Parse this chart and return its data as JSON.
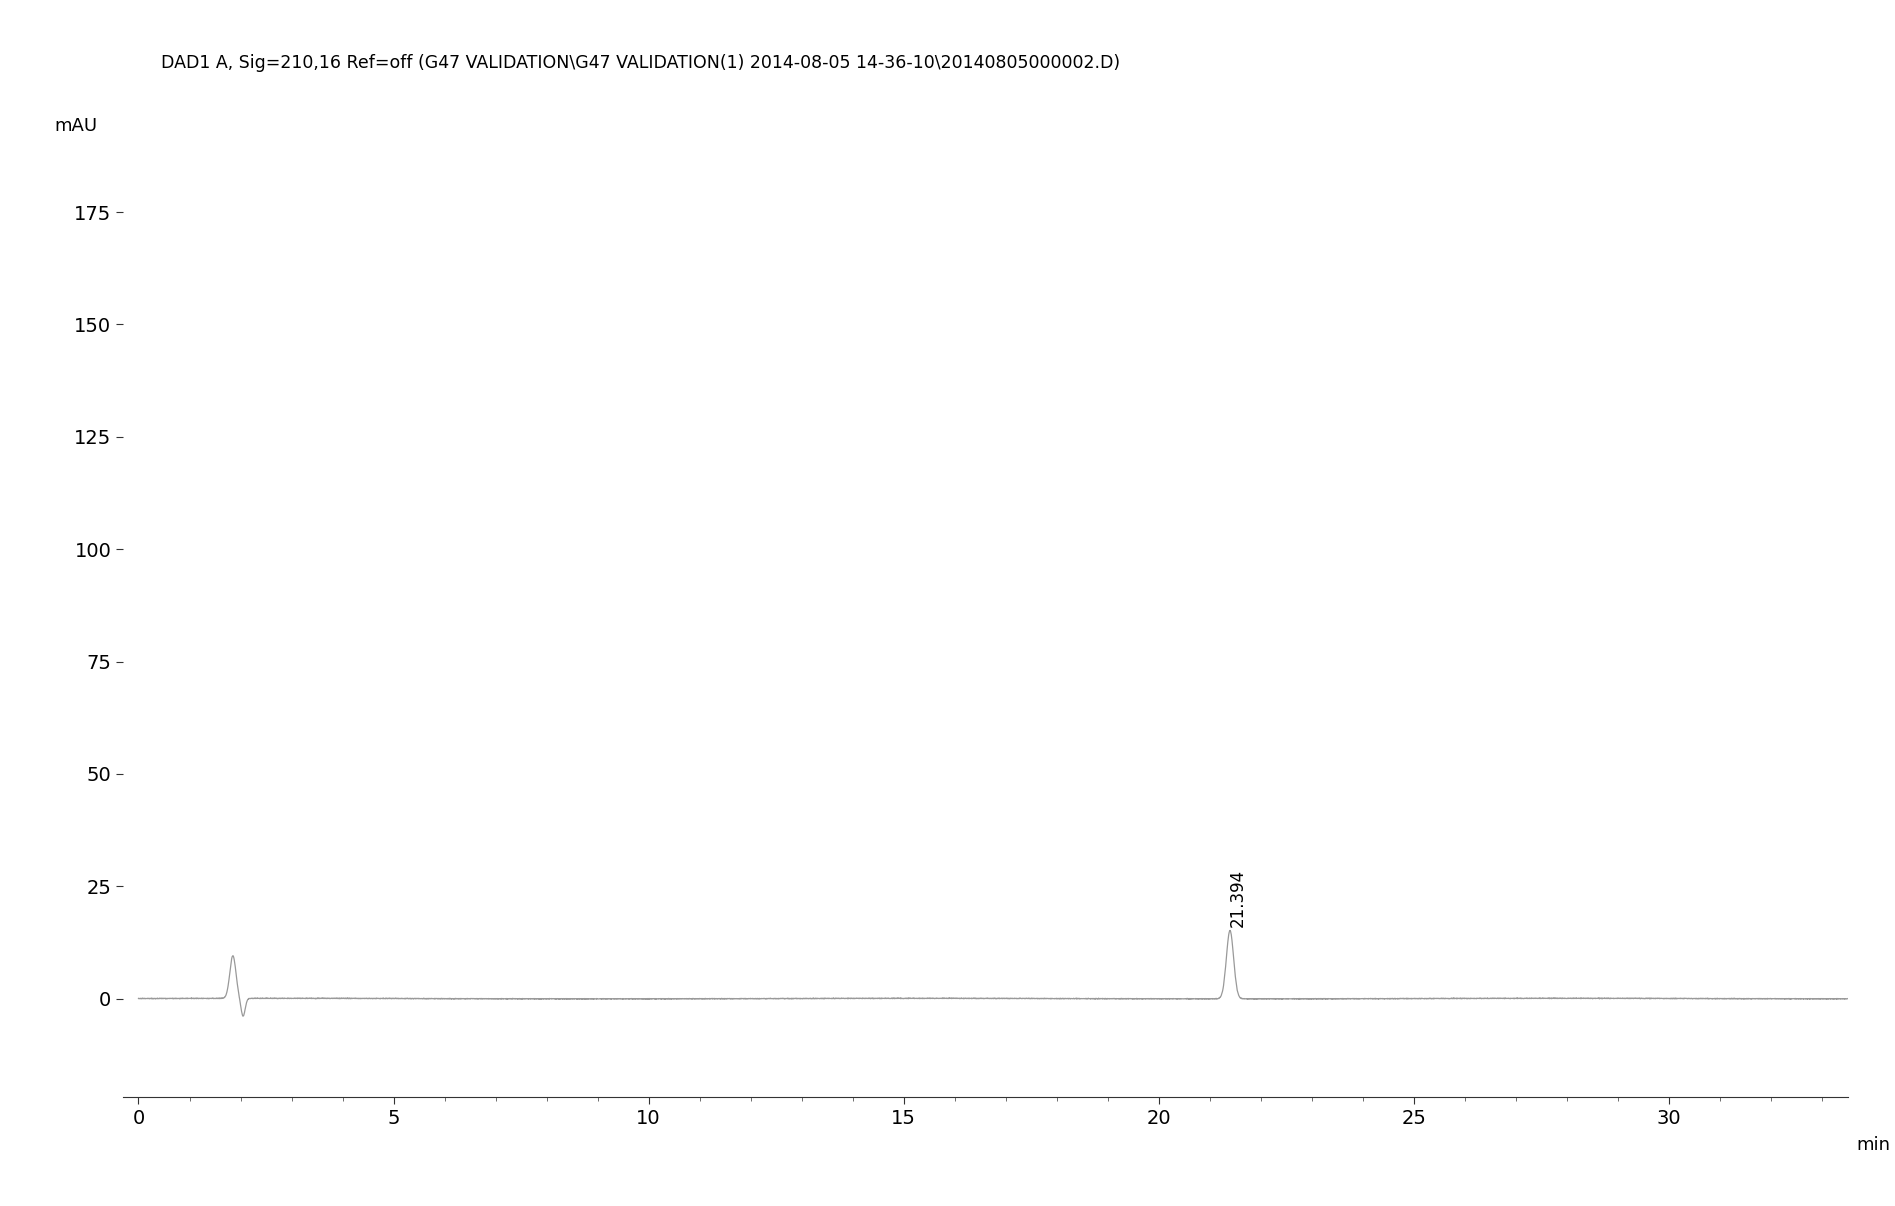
{
  "header_line1": "DAD1 A, Sig=210,16 Ref=off (G47 VALIDATION\\G47 VALIDATION(1) 2014-08-05 14-36-10\\20140805000002.D)",
  "ylabel": "mAU",
  "xlabel": "min",
  "xlim": [
    -0.3,
    33.5
  ],
  "ylim": [
    -22,
    190
  ],
  "yticks": [
    0,
    25,
    50,
    75,
    100,
    125,
    150,
    175
  ],
  "xticks": [
    0,
    5,
    10,
    15,
    20,
    25,
    30
  ],
  "peak_time": 21.394,
  "peak_height": 15.2,
  "peak_label": "21.394",
  "noise_time": 1.85,
  "noise_height": 9.5,
  "background_color": "#ffffff",
  "line_color": "#999999",
  "label_fontsize": 13,
  "tick_fontsize": 14,
  "header_fontsize": 12.5
}
